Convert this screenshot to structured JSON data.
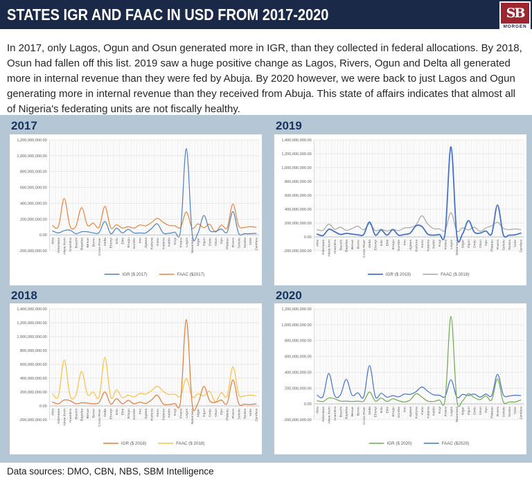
{
  "header": {
    "title": "STATES IGR AND FAAC IN USD FROM 2017-2020",
    "logo_text": "SB",
    "logo_subtext": "MORGEN"
  },
  "intro": {
    "text": "In 2017, only Lagos, Ogun and Osun generated more in IGR, than they collected in federal allocations. By 2018, Osun had fallen off this list. 2019 saw a huge positive change as Lagos, Rivers, Ogun and Delta all generated more in internal revenue than they were fed by Abuja. By 2020 however, we were back to just Lagos and Ogun generating more in internal revenue than they received from Abuja. This state of affairs indicates that almost all of Nigeria's federating units are not fiscally healthy."
  },
  "footer": {
    "text": "Data sources: DMO, CBN, NBS, SBM Intelligence"
  },
  "theme": {
    "header_navy": "#1b2948",
    "charts_background": "#b5c7d4",
    "panel_background": "#ffffff",
    "logo_red": "#9e2630",
    "chart_title_navy": "#16335e"
  },
  "chart_data": [
    {
      "type": "line",
      "title": "2017",
      "grid_position": "top-left",
      "values_unit": "USD millions",
      "ylim_millions": [
        -200,
        1200
      ],
      "ytick_step_millions": 200,
      "legend_position": "bottom",
      "grid": true,
      "categories": [
        "Abia",
        "Adamawa",
        "Akwa Ibom",
        "Anambra",
        "Bauchi",
        "Bayelsa",
        "Benue",
        "Borno",
        "Cross River",
        "Delta",
        "Ebonyi",
        "Edo",
        "Ekiti",
        "Enugu",
        "Gombe",
        "Imo",
        "Jigawa",
        "Kaduna",
        "Kano",
        "Katsina",
        "Kebbi",
        "Kogi",
        "Kwara",
        "Lagos",
        "Nasarawa",
        "Niger",
        "Ogun",
        "Ondo",
        "Osun",
        "Oyo",
        "Plateau",
        "Rivers",
        "Sokoto",
        "Taraba",
        "Yobe",
        "Zamfara"
      ],
      "series": [
        {
          "name": "IGR ($ 2017)",
          "color": "#4e7fba",
          "width": 1.2,
          "values": [
            50,
            25,
            55,
            60,
            15,
            40,
            40,
            25,
            30,
            170,
            15,
            85,
            25,
            70,
            25,
            25,
            25,
            80,
            140,
            25,
            20,
            35,
            55,
            1090,
            10,
            25,
            245,
            60,
            45,
            75,
            35,
            295,
            20,
            15,
            15,
            20
          ]
        },
        {
          "name": "FAAC ($2017)",
          "color": "#e8833a",
          "width": 1.2,
          "values": [
            120,
            105,
            460,
            110,
            110,
            345,
            120,
            150,
            95,
            360,
            90,
            130,
            85,
            105,
            85,
            125,
            115,
            155,
            210,
            160,
            120,
            115,
            95,
            290,
            85,
            140,
            90,
            135,
            35,
            125,
            90,
            390,
            115,
            95,
            105,
            95
          ]
        }
      ]
    },
    {
      "type": "line",
      "title": "2019",
      "grid_position": "top-right",
      "values_unit": "USD millions",
      "ylim_millions": [
        -200,
        1400
      ],
      "ytick_step_millions": 200,
      "legend_position": "bottom",
      "grid": true,
      "categories": [
        "Abia",
        "Adamawa",
        "Akwa Ibom",
        "Anambra",
        "Bauchi",
        "Bayelsa",
        "Benue",
        "Borno",
        "Cross River",
        "Delta",
        "Ebonyi",
        "Edo",
        "Ekiti",
        "Enugu",
        "Gombe",
        "Imo",
        "Jigawa",
        "Kaduna",
        "Kano",
        "Katsina",
        "Kebbi",
        "Kogi",
        "Kwara",
        "Lagos",
        "Nasarawa",
        "Niger",
        "Ogun",
        "Ondo",
        "Osun",
        "Oyo",
        "Plateau",
        "Rivers",
        "Sokoto",
        "Taraba",
        "Yobe",
        "Zamfara"
      ],
      "series": [
        {
          "name": "IGR ($ 2019)",
          "color": "#4472c4",
          "width": 1.8,
          "values": [
            40,
            20,
            110,
            75,
            35,
            50,
            40,
            30,
            35,
            215,
            25,
            100,
            25,
            105,
            25,
            35,
            55,
            160,
            150,
            40,
            25,
            35,
            60,
            1300,
            20,
            45,
            235,
            70,
            55,
            85,
            45,
            460,
            30,
            25,
            30,
            55
          ]
        },
        {
          "name": "FAAC ($ 2019)",
          "color": "#a6a6a6",
          "width": 1.2,
          "values": [
            105,
            95,
            185,
            110,
            140,
            95,
            120,
            155,
            100,
            190,
            90,
            110,
            85,
            110,
            90,
            130,
            135,
            175,
            305,
            185,
            120,
            115,
            95,
            350,
            85,
            130,
            100,
            140,
            80,
            130,
            160,
            210,
            125,
            105,
            115,
            105
          ]
        }
      ]
    },
    {
      "type": "line",
      "title": "2018",
      "grid_position": "bottom-left",
      "values_unit": "USD millions",
      "ylim_millions": [
        -200,
        1400
      ],
      "ytick_step_millions": 200,
      "legend_position": "bottom",
      "grid": true,
      "categories": [
        "Abia",
        "Adamawa",
        "Akwa Ibom",
        "Anambra",
        "Bauchi",
        "Bayelsa",
        "Benue",
        "Borno",
        "Cross River",
        "Delta",
        "Ebonyi",
        "Edo",
        "Ekiti",
        "Enugu",
        "Gombe",
        "Imo",
        "Jigawa",
        "Kaduna",
        "Kano",
        "Katsina",
        "Kebbi",
        "Kogi",
        "Kwara",
        "Lagos",
        "Nasarawa",
        "Niger",
        "Ogun",
        "Ondo",
        "Osun",
        "Oyo",
        "Plateau",
        "Rivers",
        "Sokoto",
        "Taraba",
        "Yobe",
        "Zamfara"
      ],
      "series": [
        {
          "name": "IGR ($ 2018)",
          "color": "#e07b39",
          "width": 1.2,
          "values": [
            55,
            30,
            85,
            75,
            30,
            45,
            40,
            30,
            50,
            200,
            25,
            105,
            30,
            80,
            30,
            55,
            35,
            85,
            155,
            30,
            20,
            35,
            65,
            1245,
            25,
            40,
            280,
            75,
            50,
            85,
            35,
            375,
            35,
            25,
            20,
            30
          ]
        },
        {
          "name": "FAAC ($ 2018)",
          "color": "#f7c143",
          "width": 1.2,
          "values": [
            175,
            140,
            665,
            150,
            155,
            500,
            165,
            200,
            130,
            700,
            125,
            230,
            120,
            155,
            130,
            180,
            170,
            220,
            285,
            210,
            165,
            170,
            140,
            395,
            130,
            175,
            145,
            210,
            60,
            190,
            140,
            565,
            165,
            145,
            155,
            145
          ]
        }
      ]
    },
    {
      "type": "line",
      "title": "2020",
      "grid_position": "bottom-right",
      "values_unit": "USD millions",
      "ylim_millions": [
        -200,
        1200
      ],
      "ytick_step_millions": 200,
      "legend_position": "bottom",
      "grid": true,
      "categories": [
        "Abia",
        "Adamawa",
        "Akwa Ibom",
        "Anambra",
        "Bauchi",
        "Bayelsa",
        "Benue",
        "Borno",
        "Cross River",
        "Delta",
        "Ebonyi",
        "Edo",
        "Ekiti",
        "Enugu",
        "Gombe",
        "Imo",
        "Jigawa",
        "Kaduna",
        "Kano",
        "Katsina",
        "Kebbi",
        "Kogi",
        "Kwara",
        "Lagos",
        "Nasarawa",
        "Niger",
        "Ogun",
        "Ondo",
        "Osun",
        "Oyo",
        "Plateau",
        "Rivers",
        "Sokoto",
        "Taraba",
        "Yobe",
        "Zamfara"
      ],
      "series": [
        {
          "name": "IGR ($ 2020)",
          "color": "#6fa84e",
          "width": 1.2,
          "values": [
            40,
            30,
            75,
            65,
            35,
            35,
            30,
            35,
            35,
            150,
            35,
            75,
            30,
            65,
            40,
            25,
            50,
            130,
            85,
            35,
            30,
            50,
            60,
            1105,
            50,
            40,
            130,
            80,
            55,
            100,
            50,
            315,
            25,
            25,
            25,
            50
          ]
        },
        {
          "name": "FAAC ($2020)",
          "color": "#4472c4",
          "width": 1.2,
          "values": [
            110,
            95,
            385,
            105,
            115,
            310,
            110,
            140,
            90,
            485,
            90,
            135,
            85,
            105,
            90,
            125,
            120,
            155,
            215,
            160,
            115,
            110,
            95,
            305,
            85,
            120,
            105,
            125,
            85,
            125,
            105,
            375,
            115,
            100,
            110,
            105
          ]
        }
      ]
    }
  ]
}
